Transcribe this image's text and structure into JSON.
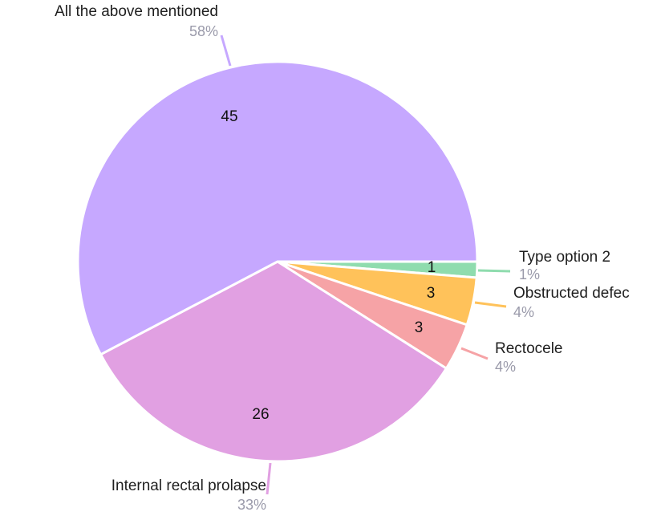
{
  "chart_data": {
    "type": "pie",
    "slices": [
      {
        "label": "Type option 2",
        "value": 1,
        "percent": "1%",
        "color": "#8fdcae"
      },
      {
        "label": "Obstructed defec",
        "value": 3,
        "percent": "4%",
        "color": "#ffc25a"
      },
      {
        "label": "Rectocele",
        "value": 3,
        "percent": "4%",
        "color": "#f6a3a6"
      },
      {
        "label": "Internal rectal prolapse",
        "value": 26,
        "percent": "33%",
        "color": "#e1a0e2"
      },
      {
        "label": "All the above mentioned",
        "value": 45,
        "percent": "58%",
        "color": "#c6a8ff"
      }
    ]
  }
}
